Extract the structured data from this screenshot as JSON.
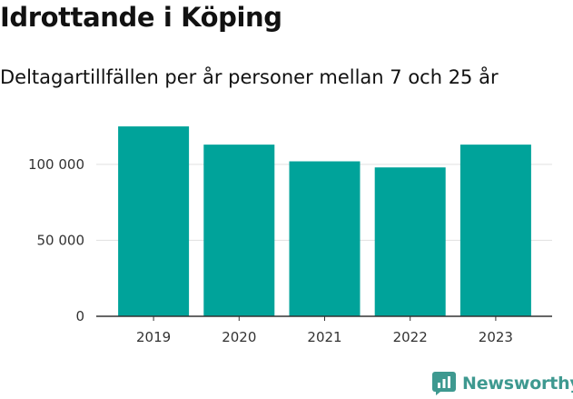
{
  "header": {
    "title": "Idrottande i Köping",
    "subtitle": "Deltagartillfällen per år personer mellan 7 och 25 år"
  },
  "brand": {
    "name": "Newsworthy",
    "color": "#3e9990"
  },
  "colors": {
    "bar": "#00a39a",
    "grid": "#e0e0e0",
    "axis": "#333333"
  },
  "chart_data": {
    "type": "bar",
    "title": "Idrottande i Köping",
    "subtitle": "Deltagartillfällen per år personer mellan 7 och 25 år",
    "xlabel": "",
    "ylabel": "",
    "categories": [
      "2019",
      "2020",
      "2021",
      "2022",
      "2023"
    ],
    "values": [
      125000,
      113000,
      102000,
      98000,
      113000
    ],
    "ylim": [
      0,
      140000
    ],
    "yticks": [
      0,
      50000,
      100000
    ],
    "ytick_labels": [
      "0",
      "50 000",
      "100 000"
    ],
    "grid": true,
    "legend": "none"
  }
}
